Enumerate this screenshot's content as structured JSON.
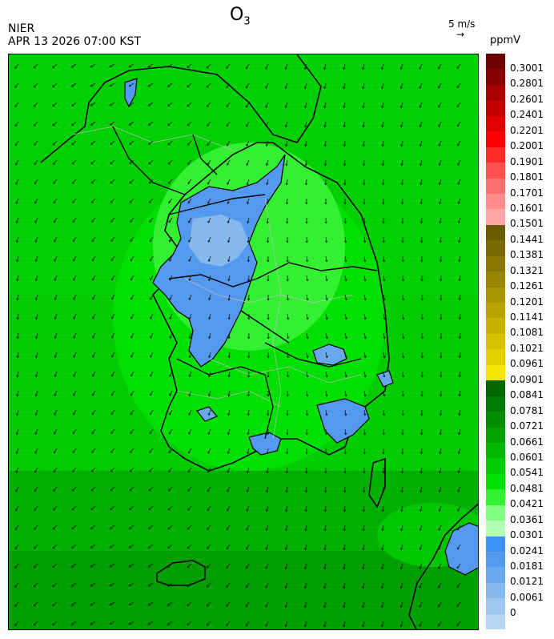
{
  "header": {
    "species_main": "O",
    "species_sub": "3",
    "agency": "NIER",
    "datetime": "APR 13 2026 07:00 KST",
    "wind_ref_label": "5 m/s",
    "unit": "ppmV"
  },
  "legend": {
    "items": [
      {
        "label": "0.3001",
        "color": "#6e0000"
      },
      {
        "label": "0.2801",
        "color": "#8a0000"
      },
      {
        "label": "0.2601",
        "color": "#a60000"
      },
      {
        "label": "0.2401",
        "color": "#c40000"
      },
      {
        "label": "0.2201",
        "color": "#e00000"
      },
      {
        "label": "0.2001",
        "color": "#ff0000"
      },
      {
        "label": "0.1901",
        "color": "#ff2a2a"
      },
      {
        "label": "0.1801",
        "color": "#ff4f4f"
      },
      {
        "label": "0.1701",
        "color": "#ff6e6e"
      },
      {
        "label": "0.1601",
        "color": "#ff8c8c"
      },
      {
        "label": "0.1501",
        "color": "#ffa5a5"
      },
      {
        "label": "0.1441",
        "color": "#6b5c00"
      },
      {
        "label": "0.1381",
        "color": "#7a6a00"
      },
      {
        "label": "0.1321",
        "color": "#897800"
      },
      {
        "label": "0.1261",
        "color": "#988600"
      },
      {
        "label": "0.1201",
        "color": "#a89500"
      },
      {
        "label": "0.1141",
        "color": "#b7a300"
      },
      {
        "label": "0.1081",
        "color": "#c6b100"
      },
      {
        "label": "0.1021",
        "color": "#d6c000"
      },
      {
        "label": "0.0961",
        "color": "#e5d000"
      },
      {
        "label": "0.0901",
        "color": "#f5e800"
      },
      {
        "label": "0.0841",
        "color": "#006600"
      },
      {
        "label": "0.0781",
        "color": "#007a00"
      },
      {
        "label": "0.0721",
        "color": "#008f00"
      },
      {
        "label": "0.0661",
        "color": "#00a300"
      },
      {
        "label": "0.0601",
        "color": "#00b800"
      },
      {
        "label": "0.0541",
        "color": "#00cc00"
      },
      {
        "label": "0.0481",
        "color": "#00e000"
      },
      {
        "label": "0.0421",
        "color": "#33f033"
      },
      {
        "label": "0.0361",
        "color": "#80ff80"
      },
      {
        "label": "0.0301",
        "color": "#b3ffb3"
      },
      {
        "label": "0.0241",
        "color": "#3d8ff5"
      },
      {
        "label": "0.0181",
        "color": "#5399f0"
      },
      {
        "label": "0.0121",
        "color": "#6aa8ee"
      },
      {
        "label": "0.0061",
        "color": "#85b9ee"
      },
      {
        "label": "0",
        "color": "#a0c8ee"
      },
      {
        "label": "",
        "color": "#b7d6f2"
      }
    ]
  },
  "map": {
    "background_color": "#00cc00",
    "land_outline_color": "#000000",
    "district_line_color": "#bdbdbd",
    "wind_arrow_color": "#1a1a1a"
  }
}
